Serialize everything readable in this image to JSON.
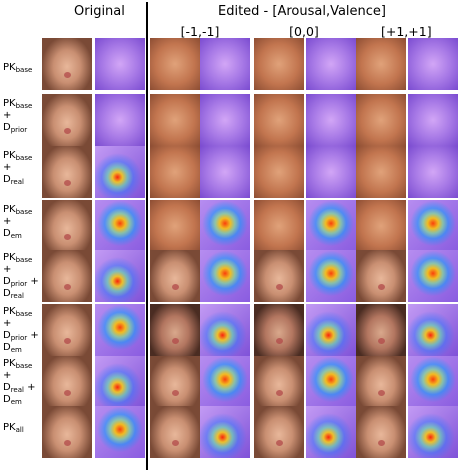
{
  "header": {
    "original": "Original",
    "edited": "Edited - [Arousal,Valence]"
  },
  "columns": [
    "[-1,-1]",
    "[0,0]",
    "[+1,+1]"
  ],
  "rows": [
    {
      "id": "r1",
      "parts": [
        {
          "t": "PK"
        },
        {
          "s": "base"
        }
      ]
    },
    {
      "id": "r2",
      "parts": [
        {
          "t": "PK"
        },
        {
          "s": "base"
        },
        {
          "t": " +"
        },
        {
          "br": true
        },
        {
          "t": "D"
        },
        {
          "s": "prior"
        }
      ]
    },
    {
      "id": "r3",
      "parts": [
        {
          "t": "PK"
        },
        {
          "s": "base"
        },
        {
          "t": " +"
        },
        {
          "br": true
        },
        {
          "t": "D"
        },
        {
          "s": "real"
        }
      ]
    },
    {
      "id": "r4",
      "parts": [
        {
          "t": "PK"
        },
        {
          "s": "base"
        },
        {
          "t": " +"
        },
        {
          "br": true
        },
        {
          "t": "D"
        },
        {
          "s": "em"
        }
      ]
    },
    {
      "id": "r5",
      "parts": [
        {
          "t": "PK"
        },
        {
          "s": "base"
        },
        {
          "t": " +"
        },
        {
          "br": true
        },
        {
          "t": "D"
        },
        {
          "s": "prior"
        },
        {
          "t": " +"
        },
        {
          "br": true
        },
        {
          "t": "D"
        },
        {
          "s": "real"
        }
      ]
    },
    {
      "id": "r6",
      "parts": [
        {
          "t": "PK"
        },
        {
          "s": "base"
        },
        {
          "t": " +"
        },
        {
          "br": true
        },
        {
          "t": "D"
        },
        {
          "s": "prior"
        },
        {
          "t": " +"
        },
        {
          "br": true
        },
        {
          "t": "D"
        },
        {
          "s": "em"
        }
      ]
    },
    {
      "id": "r7",
      "parts": [
        {
          "t": "PK"
        },
        {
          "s": "base"
        },
        {
          "t": " +"
        },
        {
          "br": true
        },
        {
          "t": "D"
        },
        {
          "s": "real"
        },
        {
          "t": " +"
        },
        {
          "br": true
        },
        {
          "t": "D"
        },
        {
          "s": "em"
        }
      ]
    },
    {
      "id": "r8",
      "parts": [
        {
          "t": "PK"
        },
        {
          "s": "all"
        }
      ]
    }
  ]
}
